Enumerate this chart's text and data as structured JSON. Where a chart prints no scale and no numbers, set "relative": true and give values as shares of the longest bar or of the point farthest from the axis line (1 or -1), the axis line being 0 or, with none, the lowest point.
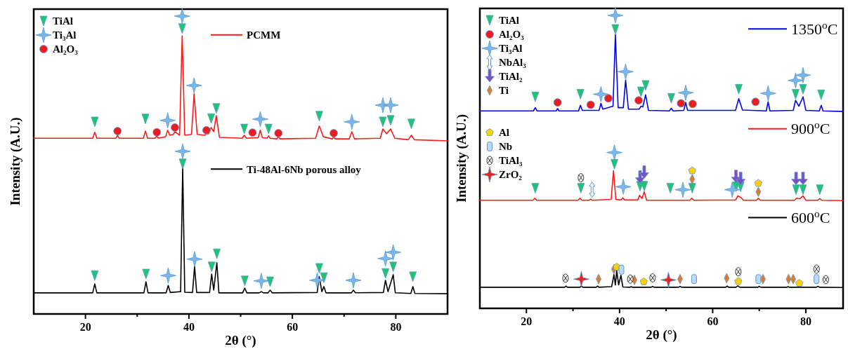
{
  "chart_data": [
    {
      "type": "line",
      "xlabel": "2θ (°)",
      "ylabel": "Intensity (A.U.)",
      "relative": true,
      "xlim": [
        10,
        90
      ],
      "xticks": [
        20,
        {
          "value": 30,
          "label": null
        },
        40,
        {
          "value": 50,
          "label": null
        },
        60,
        {
          "value": 70,
          "label": null
        },
        80
      ],
      "legend": "top left",
      "series": [
        {
          "name": "PCMM",
          "color": "#ff1a1a",
          "x": [
            10,
            15,
            21.4,
            21.8,
            22.2,
            25.9,
            26.2,
            26.5,
            31.2,
            31.6,
            32,
            33.5,
            33.8,
            34.1,
            35.5,
            35.9,
            36.3,
            37,
            37.3,
            38.2,
            38.7,
            39.2,
            40.5,
            41,
            41.6,
            43.1,
            43.4,
            43.8,
            44.3,
            44.8,
            45.3,
            45.9,
            50.3,
            50.7,
            51.1,
            53.4,
            53.8,
            54.2,
            55.1,
            55.4,
            55.7,
            57,
            57.3,
            57.6,
            64.5,
            65.2,
            66,
            67.7,
            68,
            68.3,
            71,
            71.5,
            72,
            77,
            77.5,
            78.2,
            79,
            79.8,
            82.4,
            83,
            83.6,
            90
          ],
          "values": [
            0.59,
            0.59,
            0.59,
            0.61,
            0.59,
            0.59,
            0.6,
            0.59,
            0.59,
            0.614,
            0.59,
            0.59,
            0.598,
            0.59,
            0.595,
            0.617,
            0.6,
            0.603,
            0.612,
            0.6,
            0.934,
            0.6,
            0.603,
            0.739,
            0.603,
            0.6,
            0.606,
            0.605,
            0.626,
            0.612,
            0.666,
            0.593,
            0.59,
            0.6,
            0.59,
            0.592,
            0.617,
            0.592,
            0.59,
            0.598,
            0.59,
            0.588,
            0.594,
            0.588,
            0.59,
            0.631,
            0.595,
            0.588,
            0.593,
            0.588,
            0.588,
            0.612,
            0.588,
            0.59,
            0.621,
            0.605,
            0.621,
            0.59,
            0.585,
            0.6,
            0.585,
            0.581
          ]
        },
        {
          "name": "Ti-48Al-6Nb porous alloy",
          "color": "#000000",
          "x": [
            10,
            21.4,
            21.8,
            22.2,
            31.3,
            31.7,
            32.1,
            35.6,
            36,
            36.4,
            38.4,
            38.8,
            39.2,
            40.7,
            41.1,
            41.5,
            44,
            44.4,
            44.8,
            45.4,
            45.8,
            50.4,
            50.8,
            51.2,
            53.6,
            54,
            54.4,
            55.3,
            55.7,
            56.1,
            64.8,
            65.2,
            65.7,
            66.1,
            66.5,
            71.4,
            71.8,
            72.2,
            77.6,
            78,
            78.5,
            79.5,
            79.9,
            82.9,
            83.3,
            83.7,
            90
          ],
          "values": [
            0.071,
            0.071,
            0.101,
            0.071,
            0.071,
            0.108,
            0.071,
            0.071,
            0.096,
            0.072,
            0.075,
            0.494,
            0.073,
            0.072,
            0.16,
            0.072,
            0.072,
            0.134,
            0.08,
            0.172,
            0.071,
            0.071,
            0.087,
            0.071,
            0.071,
            0.075,
            0.071,
            0.071,
            0.08,
            0.071,
            0.072,
            0.125,
            0.075,
            0.092,
            0.071,
            0.071,
            0.08,
            0.071,
            0.072,
            0.113,
            0.075,
            0.132,
            0.071,
            0.069,
            0.092,
            0.069,
            0.068
          ]
        },
        {
          "type": "scatter",
          "name": "TiAl",
          "color": "#1fc46e",
          "marker": "triangle",
          "x": [
            21.8,
            31.6,
            38.7,
            44.3,
            45.3,
            50.7,
            55.4,
            65.2,
            77.5,
            79,
            83,
            21.8,
            31.7,
            38.8,
            44.4,
            45.4,
            50.8,
            55.7,
            65.2,
            66.1,
            78,
            79.5,
            83.3
          ],
          "values": [
            0.645,
            0.655,
            0.958,
            0.656,
            0.69,
            0.621,
            0.621,
            0.664,
            0.645,
            0.65,
            0.638,
            0.129,
            0.134,
            0.504,
            0.158,
            0.202,
            0.111,
            0.108,
            0.153,
            0.122,
            0.136,
            0.158,
            0.125
          ]
        },
        {
          "type": "scatter",
          "name": "Ti₃Al",
          "color": "#7ab6e8",
          "marker": "star",
          "x": [
            35.9,
            38.7,
            41,
            53.8,
            71.5,
            77.5,
            79,
            36,
            38.8,
            41.1,
            54,
            64.8,
            71.8,
            78,
            79.5
          ],
          "values": [
            0.65,
            1.0,
            0.767,
            0.654,
            0.645,
            0.701,
            0.701,
            0.129,
            0.546,
            0.184,
            0.111,
            0.113,
            0.113,
            0.186,
            0.207
          ]
        },
        {
          "type": "scatter",
          "name": "Al₂O₃",
          "color": "#ee1c1c",
          "marker": "circle",
          "x": [
            26.2,
            33.8,
            37.3,
            43.4,
            52.3,
            57.3,
            68
          ],
          "values": [
            0.614,
            0.61,
            0.626,
            0.617,
            0.609,
            0.607,
            0.607
          ]
        }
      ]
    },
    {
      "type": "line",
      "xlabel": "2θ (°)",
      "ylabel": "Intensity (A.U.)",
      "relative": true,
      "xlim": [
        10,
        88
      ],
      "xticks": [
        20,
        {
          "value": 30,
          "label": null
        },
        40,
        {
          "value": 50,
          "label": null
        },
        60,
        {
          "value": 70,
          "label": null
        },
        80
      ],
      "legend": "top left",
      "series": [
        {
          "name": "1350$^{o}$C",
          "color": "#0000ff",
          "x": [
            10,
            21.5,
            21.9,
            22.3,
            26.4,
            26.7,
            27,
            31.2,
            31.6,
            32,
            35.6,
            36,
            36.4,
            38.6,
            39.1,
            39.7,
            40.8,
            41.3,
            41.9,
            44.2,
            44.6,
            45,
            45.6,
            46.2,
            50.7,
            51.1,
            51.5,
            53.8,
            54.2,
            54.6,
            64.9,
            65.6,
            66.4,
            71.5,
            71.9,
            72.3,
            77.3,
            77.8,
            78.5,
            79.4,
            80,
            82.9,
            83.3,
            83.7,
            88
          ],
          "values": [
            0.674,
            0.674,
            0.685,
            0.674,
            0.674,
            0.682,
            0.674,
            0.674,
            0.693,
            0.676,
            0.676,
            0.7,
            0.68,
            0.69,
            0.934,
            0.685,
            0.685,
            0.779,
            0.68,
            0.68,
            0.69,
            0.688,
            0.729,
            0.676,
            0.674,
            0.683,
            0.674,
            0.676,
            0.703,
            0.676,
            0.676,
            0.716,
            0.677,
            0.674,
            0.705,
            0.674,
            0.676,
            0.71,
            0.69,
            0.722,
            0.676,
            0.674,
            0.693,
            0.674,
            0.672
          ]
        },
        {
          "name": "900$^{o}$C",
          "color": "#ff1a1a",
          "x": [
            10,
            21.4,
            21.8,
            22.2,
            31.1,
            31.5,
            31.9,
            33.5,
            33.8,
            34.1,
            38.2,
            38.7,
            39.2,
            40.3,
            40.7,
            41.1,
            43.9,
            44.3,
            44.8,
            45.3,
            45.8,
            55.1,
            55.5,
            55.9,
            64.9,
            65.4,
            66.1,
            66.6,
            69.4,
            69.8,
            70.2,
            77.6,
            78,
            78.7,
            79.4,
            80,
            82.6,
            83,
            83.4,
            88
          ],
          "values": [
            0.369,
            0.369,
            0.376,
            0.369,
            0.369,
            0.376,
            0.369,
            0.369,
            0.373,
            0.369,
            0.372,
            0.47,
            0.372,
            0.37,
            0.377,
            0.37,
            0.37,
            0.386,
            0.375,
            0.398,
            0.369,
            0.369,
            0.376,
            0.369,
            0.37,
            0.384,
            0.378,
            0.369,
            0.369,
            0.376,
            0.369,
            0.369,
            0.376,
            0.374,
            0.384,
            0.369,
            0.369,
            0.375,
            0.369,
            0.368
          ]
        },
        {
          "name": "600$^{o}$C",
          "color": "#000000",
          "x": [
            10,
            28.2,
            28.5,
            28.8,
            31.5,
            31.8,
            32.1,
            35,
            35.3,
            35.6,
            38.3,
            38.8,
            39.1,
            39.4,
            39.8,
            40.3,
            40.7,
            42.2,
            42.5,
            42.8,
            46.8,
            47.1,
            47.4,
            52.7,
            53,
            53.3,
            62.8,
            63.1,
            63.4,
            65,
            65.4,
            65.8,
            69.7,
            70,
            70.3,
            75.9,
            76.2,
            76.5,
            82.2,
            82.6,
            83,
            88
          ],
          "values": [
            0.072,
            0.072,
            0.076,
            0.072,
            0.072,
            0.076,
            0.072,
            0.072,
            0.076,
            0.072,
            0.074,
            0.115,
            0.08,
            0.129,
            0.08,
            0.113,
            0.073,
            0.072,
            0.074,
            0.072,
            0.072,
            0.075,
            0.072,
            0.072,
            0.075,
            0.072,
            0.072,
            0.076,
            0.072,
            0.072,
            0.077,
            0.072,
            0.072,
            0.075,
            0.072,
            0.072,
            0.074,
            0.072,
            0.072,
            0.075,
            0.072,
            0.071
          ]
        },
        {
          "type": "scatter",
          "name": "TiAl",
          "color": "#1fc46e",
          "marker": "triangle",
          "x": [
            21.9,
            31.6,
            39.1,
            44.6,
            45.6,
            51.1,
            65.6,
            77.8,
            79.4,
            83.3,
            21.9,
            31.7,
            38.9,
            44.4,
            45.3,
            50.9,
            55.6,
            65,
            66,
            77.9,
            79.4,
            83
          ],
          "values": [
            0.722,
            0.731,
            0.952,
            0.739,
            0.761,
            0.717,
            0.748,
            0.731,
            0.748,
            0.729,
            0.41,
            0.41,
            0.492,
            0.417,
            0.417,
            0.41,
            0.41,
            0.415,
            0.415,
            0.405,
            0.405,
            0.405
          ]
        },
        {
          "type": "scatter",
          "name": "Al₂O₃",
          "color": "#ee1c1c",
          "marker": "circle",
          "x": [
            26.7,
            33.8,
            37.6,
            44.1,
            53.2,
            55.7,
            69.2
          ],
          "values": [
            0.703,
            0.695,
            0.717,
            0.71,
            0.7,
            0.698,
            0.705
          ]
        },
        {
          "type": "scatter",
          "name": "Ti₃Al",
          "color": "#7ab6e8",
          "marker": "star",
          "x": [
            36,
            39.1,
            41.3,
            54.2,
            71.9,
            77.8,
            79.4,
            38.9,
            40.8,
            53.6,
            64.2
          ],
          "values": [
            0.731,
            1.0,
            0.808,
            0.736,
            0.734,
            0.778,
            0.796,
            0.532,
            0.415,
            0.405,
            0.405
          ]
        },
        {
          "type": "scatter",
          "name": "NbAl₃",
          "color": "#5b9bd5",
          "x": [
            34.1
          ],
          "values": [
            0.405
          ]
        },
        {
          "type": "scatter",
          "name": "TiAl₂",
          "color": "#7b4fc2",
          "x": [
            44.4,
            45.3,
            65,
            66,
            77.9,
            79.4
          ],
          "values": [
            0.446,
            0.463,
            0.448,
            0.441,
            0.441,
            0.441
          ]
        },
        {
          "type": "scatter",
          "name": "Ti",
          "color": "#e07b28",
          "marker": "diamond",
          "x": [
            55.6,
            69.8,
            35.5,
            38.8,
            43.2,
            53,
            63,
            70.8,
            76.3,
            77.3
          ],
          "values": [
            0.441,
            0.398,
            0.1,
            0.134,
            0.097,
            0.1,
            0.103,
            0.1,
            0.1,
            0.1
          ]
        },
        {
          "type": "scatter",
          "name": "Al",
          "color": "#ffd000",
          "x": [
            55.6,
            69.8,
            39.4,
            45.2,
            65.5,
            78.6
          ],
          "values": [
            0.47,
            0.427,
            0.141,
            0.091,
            0.092,
            0.086
          ]
        },
        {
          "type": "scatter",
          "name": "Nb",
          "color": "#bcd8f5",
          "marker": "square",
          "x": [
            40.4,
            56,
            69.8,
            82.3
          ],
          "values": [
            0.132,
            0.1,
            0.1,
            0.1
          ]
        },
        {
          "type": "scatter",
          "name": "TiAl₃",
          "color": "#333333",
          "marker": "cross",
          "x": [
            31.7,
            28.4,
            42.3,
            47.1,
            65.5,
            82.3,
            84.3
          ],
          "values": [
            0.446,
            0.103,
            0.1,
            0.104,
            0.125,
            0.134,
            0.098
          ]
        },
        {
          "type": "scatter",
          "name": "ZrO₂",
          "color": "#e8231f",
          "marker": "star",
          "x": [
            31.8,
            50.5
          ],
          "values": [
            0.1,
            0.097
          ]
        }
      ]
    }
  ]
}
